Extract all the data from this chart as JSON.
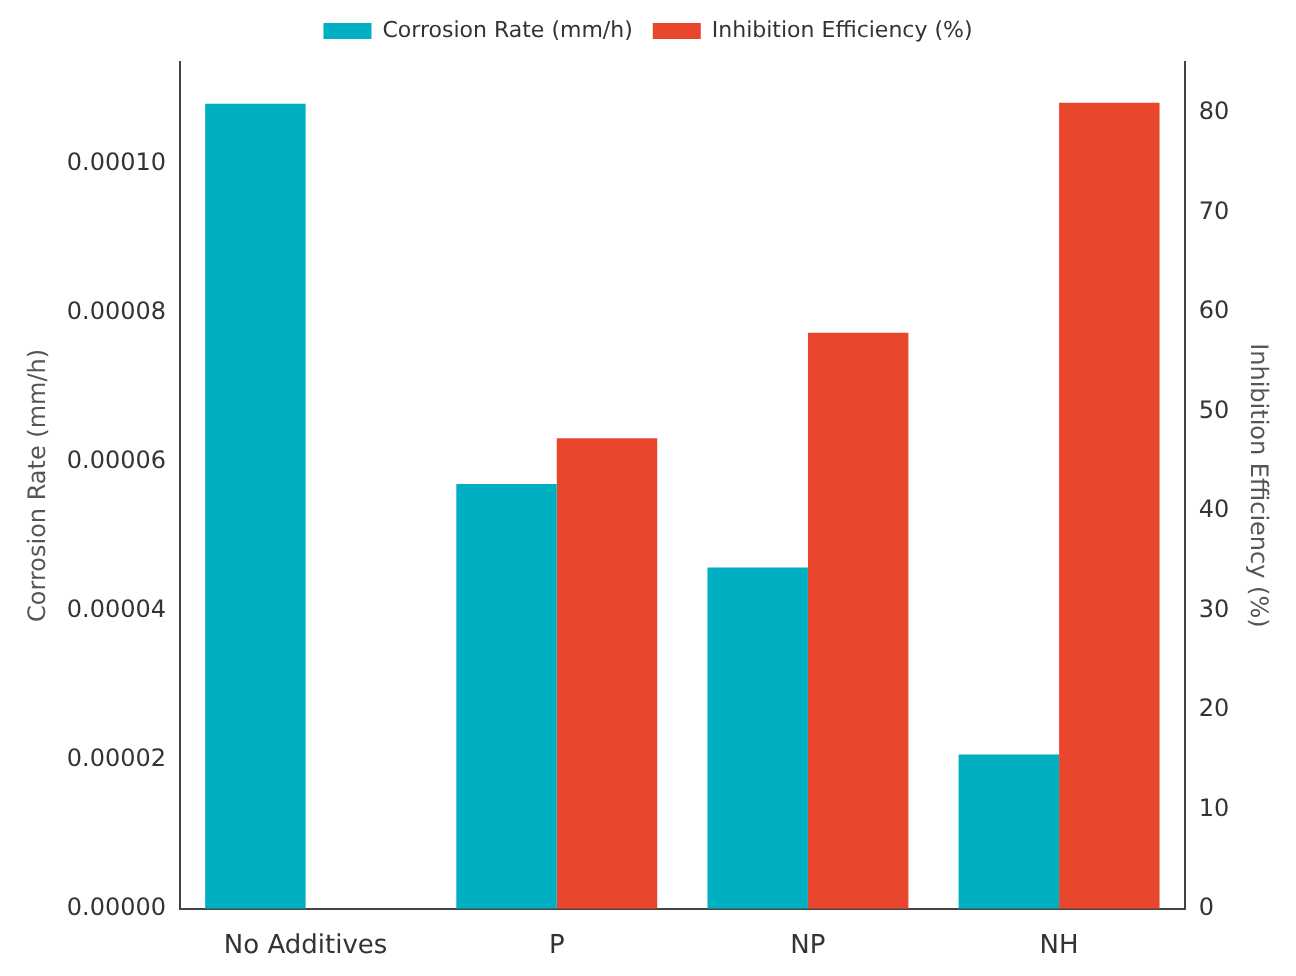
{
  "chart_data": {
    "type": "bar",
    "ylabel": "Corrosion Rate (mm/h)",
    "y2label": "Inhibition Efficiency (%)",
    "categories": [
      "No Additives",
      "P",
      "NP",
      "NH"
    ],
    "series": [
      {
        "name": "Corrosion Rate (mm/h)",
        "color": "#00afc1",
        "values": [
          0.000108,
          5.7e-05,
          4.58e-05,
          2.07e-05
        ]
      },
      {
        "name": "Inhibition Efficiency (%)",
        "color": "#e8472e",
        "axis": "y2",
        "values": [
          null,
          47.3,
          57.9,
          81.0
        ]
      }
    ],
    "ylim": [
      0,
      0.0001136
    ],
    "yticks": [
      {
        "value": 0,
        "label": "0.00000"
      },
      {
        "value": 2e-05,
        "label": "0.00002"
      },
      {
        "value": 4e-05,
        "label": "0.00004"
      },
      {
        "value": 6e-05,
        "label": "0.00006"
      },
      {
        "value": 8e-05,
        "label": "0.00008"
      },
      {
        "value": 0.0001,
        "label": "0.00010"
      }
    ],
    "y2lim": [
      0,
      85.1
    ],
    "y2ticks": [
      0,
      10,
      20,
      30,
      40,
      50,
      60,
      70,
      80
    ],
    "grid": false,
    "legend": "top"
  }
}
